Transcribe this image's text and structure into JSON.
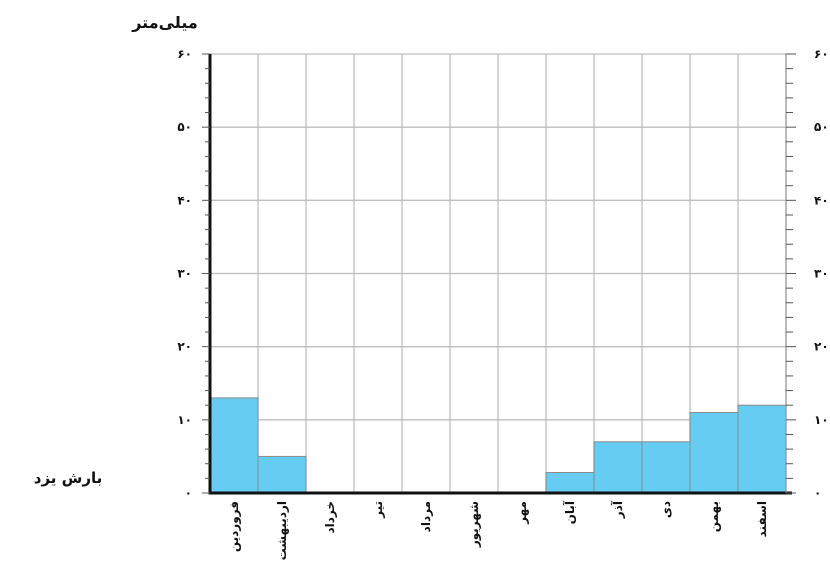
{
  "chart_data": {
    "type": "bar",
    "ylabel": "میلی‌متر",
    "caption": "بارش یزد",
    "categories": [
      "فروردین",
      "اردیبهشت",
      "خرداد",
      "تیر",
      "مرداد",
      "شهریور",
      "مهر",
      "آبان",
      "آذر",
      "دی",
      "بهمن",
      "اسفند"
    ],
    "values": [
      13,
      5,
      0,
      0,
      0,
      0,
      0,
      2.8,
      7,
      7,
      11,
      12
    ],
    "ylim": [
      0,
      60
    ],
    "yticks": [
      0,
      10,
      20,
      30,
      40,
      50,
      60
    ],
    "ytick_labels": [
      "۰",
      "۱۰",
      "۲۰",
      "۳۰",
      "۴۰",
      "۵۰",
      "۶۰"
    ],
    "grid": true,
    "right_axis_mirror": true,
    "bar_color": "#66ccf2",
    "grid_color": "#bdbdbd"
  }
}
